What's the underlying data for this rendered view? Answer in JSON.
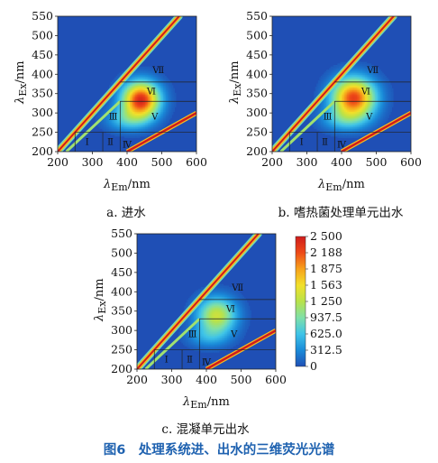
{
  "chart_data": [
    {
      "id": "a",
      "type": "heatmap",
      "caption": "a. 进水",
      "xlabel": "λ",
      "xlabel_sub": "Em",
      "xlabel_unit": "/nm",
      "ylabel": "λ",
      "ylabel_sub": "Ex",
      "ylabel_unit": "/nm",
      "xlim": [
        200,
        600
      ],
      "ylim": [
        200,
        550
      ],
      "xticks": [
        "200",
        "300",
        "400",
        "500",
        "600"
      ],
      "yticks": [
        "200",
        "250",
        "300",
        "350",
        "400",
        "450",
        "500",
        "550"
      ],
      "peaks": [
        {
          "em": 440,
          "ex": 335,
          "intensity": 2400,
          "sx": 52,
          "sy": 45
        },
        {
          "em": 400,
          "ex": 285,
          "intensity": 600,
          "sx": 60,
          "sy": 30
        }
      ],
      "regions": [
        "Ⅰ",
        "Ⅱ",
        "Ⅲ",
        "Ⅳ",
        "Ⅴ",
        "Ⅵ",
        "Ⅶ"
      ],
      "scatter_intensity": 2500
    },
    {
      "id": "b",
      "type": "heatmap",
      "caption": "b. 嗜热菌处理单元出水",
      "xlabel": "λ",
      "xlabel_sub": "Em",
      "xlabel_unit": "/nm",
      "ylabel": "λ",
      "ylabel_sub": "Ex",
      "ylabel_unit": "/nm",
      "xlim": [
        200,
        600
      ],
      "ylim": [
        200,
        550
      ],
      "xticks": [
        "200",
        "300",
        "400",
        "500",
        "600"
      ],
      "yticks": [
        "200",
        "250",
        "300",
        "350",
        "400",
        "450",
        "500",
        "550"
      ],
      "peaks": [
        {
          "em": 435,
          "ex": 340,
          "intensity": 2250,
          "sx": 60,
          "sy": 50
        },
        {
          "em": 405,
          "ex": 285,
          "intensity": 500,
          "sx": 65,
          "sy": 30
        }
      ],
      "regions": [
        "Ⅰ",
        "Ⅱ",
        "Ⅲ",
        "Ⅳ",
        "Ⅴ",
        "Ⅵ",
        "Ⅶ"
      ],
      "scatter_intensity": 2500
    },
    {
      "id": "c",
      "type": "heatmap",
      "caption": "c. 混凝单元出水",
      "xlabel": "λ",
      "xlabel_sub": "Em",
      "xlabel_unit": "/nm",
      "ylabel": "λ",
      "ylabel_sub": "Ex",
      "ylabel_unit": "/nm",
      "xlim": [
        200,
        600
      ],
      "ylim": [
        200,
        550
      ],
      "xticks": [
        "200",
        "300",
        "400",
        "500",
        "600"
      ],
      "yticks": [
        "200",
        "250",
        "300",
        "350",
        "400",
        "450",
        "500",
        "550"
      ],
      "peaks": [
        {
          "em": 430,
          "ex": 340,
          "intensity": 1350,
          "sx": 55,
          "sy": 45
        },
        {
          "em": 405,
          "ex": 285,
          "intensity": 400,
          "sx": 60,
          "sy": 28
        }
      ],
      "regions": [
        "Ⅰ",
        "Ⅱ",
        "Ⅲ",
        "Ⅳ",
        "Ⅴ",
        "Ⅵ",
        "Ⅶ"
      ],
      "scatter_intensity": 2500
    }
  ],
  "colorbar": {
    "ticks": [
      "2 500",
      "2 188",
      "1 875",
      "1 563",
      "1 250",
      "937.5",
      "625.0",
      "312.5",
      "0"
    ],
    "min": 0,
    "max": 2500,
    "colors": [
      "#1f4fb5",
      "#1a8bd9",
      "#3fc4e8",
      "#7fe0a8",
      "#b8e24a",
      "#f2e02a",
      "#f7a21b",
      "#ee4a18",
      "#cf1c1c"
    ]
  },
  "figure_title": "图6　处理系统进、出水的三维荧光光谱"
}
